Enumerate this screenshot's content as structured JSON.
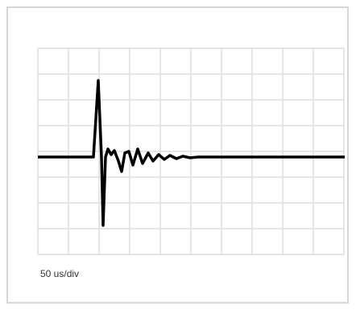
{
  "label": "50 us/div"
}
